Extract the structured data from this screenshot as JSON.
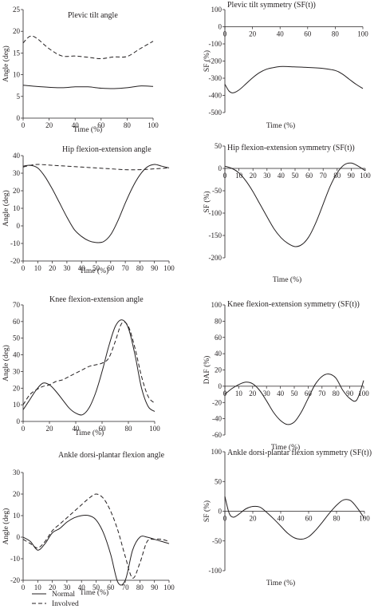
{
  "legend": {
    "normal": "Normal",
    "involved": "Involved"
  },
  "chart_data": [
    {
      "id": "pelvic-tilt-angle",
      "type": "line",
      "title": "Plevic tilt angle",
      "xlabel": "Time (%)",
      "ylabel": "Angle (deg)",
      "xlim": [
        0,
        100
      ],
      "ylim": [
        0,
        25
      ],
      "xticks": [
        0,
        20,
        40,
        60,
        80,
        100
      ],
      "yticks": [
        0,
        5,
        10,
        15,
        20,
        25
      ],
      "grid": false,
      "series": [
        {
          "name": "Normal",
          "style": "solid",
          "x": [
            0,
            10,
            20,
            30,
            40,
            50,
            60,
            70,
            80,
            90,
            100
          ],
          "y": [
            7.6,
            7.3,
            7.1,
            7.0,
            7.2,
            7.2,
            6.9,
            6.8,
            7.0,
            7.4,
            7.3
          ]
        },
        {
          "name": "Involved",
          "style": "dashed",
          "x": [
            0,
            5,
            10,
            20,
            30,
            40,
            50,
            60,
            70,
            80,
            90,
            100
          ],
          "y": [
            17.3,
            18.8,
            18.5,
            16.0,
            14.3,
            14.3,
            14.0,
            13.7,
            14.1,
            14.2,
            16.0,
            17.7
          ]
        }
      ]
    },
    {
      "id": "pelvic-tilt-symmetry",
      "type": "line",
      "title": "Plevic tilt symmetry (SF(t))",
      "xlabel": "Time (%)",
      "ylabel": "SF (%)",
      "xlim": [
        0,
        100
      ],
      "ylim": [
        -500,
        100
      ],
      "xticks": [
        0,
        20,
        40,
        60,
        80,
        100
      ],
      "yticks": [
        100,
        0,
        -100,
        -200,
        -300,
        -400,
        -500
      ],
      "grid": false,
      "series": [
        {
          "name": "Normal",
          "style": "solid",
          "x": [
            0,
            3,
            6,
            10,
            15,
            20,
            25,
            30,
            35,
            40,
            45,
            50,
            60,
            70,
            80,
            85,
            90,
            95,
            100
          ],
          "y": [
            -335,
            -375,
            -385,
            -370,
            -335,
            -298,
            -268,
            -248,
            -238,
            -232,
            -232,
            -234,
            -237,
            -242,
            -255,
            -275,
            -305,
            -335,
            -360
          ]
        }
      ]
    },
    {
      "id": "hip-flexion-extension-angle",
      "type": "line",
      "title": "Hip flexion-extension angle",
      "xlabel": "Time (%)",
      "ylabel": "Angle (deg)",
      "xlim": [
        0,
        100
      ],
      "ylim": [
        -20,
        40
      ],
      "xticks": [
        0,
        10,
        20,
        30,
        40,
        50,
        60,
        70,
        80,
        90,
        100
      ],
      "yticks": [
        40,
        30,
        20,
        10,
        0,
        -10,
        -20
      ],
      "grid": false,
      "series": [
        {
          "name": "Normal",
          "style": "solid",
          "x": [
            0,
            5,
            10,
            15,
            20,
            25,
            30,
            35,
            40,
            45,
            50,
            55,
            60,
            65,
            70,
            75,
            80,
            85,
            90,
            95,
            100
          ],
          "y": [
            34,
            34.5,
            33,
            28,
            21,
            13,
            5,
            -2,
            -6,
            -8.5,
            -9.5,
            -9,
            -5,
            3,
            13,
            22,
            29,
            33.5,
            35,
            34,
            33
          ]
        },
        {
          "name": "Involved",
          "style": "dashed",
          "x": [
            0,
            5,
            10,
            20,
            30,
            40,
            50,
            60,
            70,
            80,
            90,
            100
          ],
          "y": [
            33.5,
            34.5,
            35,
            34.5,
            34,
            33.5,
            33,
            32.5,
            32,
            32,
            32.5,
            33
          ]
        }
      ]
    },
    {
      "id": "hip-flexion-extension-symmetry",
      "type": "line",
      "title": "Hip flexion-extension symmetry (SF(t))",
      "xlabel": "Time (%)",
      "ylabel": "SF (%)",
      "xlim": [
        0,
        100
      ],
      "ylim": [
        -200,
        50
      ],
      "xticks": [
        0,
        10,
        20,
        30,
        40,
        50,
        60,
        70,
        80,
        90,
        100
      ],
      "yticks": [
        50,
        0,
        -50,
        -100,
        -150,
        -200
      ],
      "grid": false,
      "series": [
        {
          "name": "Normal",
          "style": "solid",
          "x": [
            0,
            5,
            10,
            15,
            20,
            25,
            30,
            35,
            40,
            45,
            50,
            55,
            60,
            65,
            70,
            75,
            80,
            85,
            90,
            95,
            100
          ],
          "y": [
            5,
            0,
            -10,
            -28,
            -52,
            -80,
            -108,
            -135,
            -155,
            -168,
            -175,
            -170,
            -152,
            -120,
            -80,
            -40,
            -10,
            8,
            12,
            5,
            -5
          ]
        }
      ]
    },
    {
      "id": "knee-flexion-extension-angle",
      "type": "line",
      "title": "Knee flexion-extension angle",
      "xlabel": "Time (%)",
      "ylabel": "Angle (deg)",
      "xlim": [
        0,
        100
      ],
      "ylim": [
        0,
        70
      ],
      "xticks": [
        0,
        20,
        40,
        60,
        80,
        100
      ],
      "yticks": [
        0,
        10,
        20,
        30,
        40,
        50,
        60,
        70
      ],
      "grid": false,
      "series": [
        {
          "name": "Normal",
          "style": "solid",
          "x": [
            0,
            5,
            10,
            15,
            20,
            25,
            30,
            35,
            40,
            45,
            50,
            55,
            60,
            65,
            70,
            75,
            80,
            85,
            90,
            95,
            100
          ],
          "y": [
            7,
            13,
            19,
            23,
            22,
            18,
            13,
            8,
            5,
            4,
            8,
            17,
            30,
            45,
            57,
            61,
            56,
            40,
            20,
            9,
            6
          ]
        },
        {
          "name": "Involved",
          "style": "dashed",
          "x": [
            0,
            5,
            10,
            15,
            20,
            25,
            30,
            35,
            40,
            45,
            50,
            55,
            60,
            65,
            70,
            75,
            80,
            85,
            90,
            95,
            100
          ],
          "y": [
            10,
            16,
            19,
            21,
            22,
            24,
            25,
            27,
            29,
            31,
            33,
            34,
            35,
            38,
            48,
            59,
            57,
            44,
            27,
            15,
            11
          ]
        }
      ]
    },
    {
      "id": "knee-flexion-extension-symmetry",
      "type": "line",
      "title": "Knee flexion-extension symmetry (SF(t))",
      "xlabel": "Time (%)",
      "ylabel": "DAF (%)",
      "xlim": [
        0,
        100
      ],
      "ylim": [
        -60,
        100
      ],
      "xticks": [
        0,
        10,
        20,
        30,
        40,
        50,
        60,
        70,
        80,
        90,
        100
      ],
      "yticks": [
        100,
        80,
        60,
        40,
        20,
        0,
        -20,
        -40,
        -60
      ],
      "grid": false,
      "series": [
        {
          "name": "Normal",
          "style": "solid",
          "x": [
            0,
            5,
            10,
            15,
            20,
            25,
            30,
            35,
            40,
            45,
            50,
            55,
            60,
            65,
            70,
            75,
            80,
            85,
            90,
            95,
            100
          ],
          "y": [
            -10,
            -3,
            2,
            5,
            3,
            -5,
            -18,
            -32,
            -42,
            -47,
            -44,
            -32,
            -15,
            2,
            12,
            15,
            10,
            -5,
            -15,
            -17,
            7
          ]
        }
      ]
    },
    {
      "id": "ankle-dorsi-plantar-flexion-angle",
      "type": "line",
      "title": "Ankle dorsi-plantar flexion angle",
      "xlabel": "Time (%)",
      "ylabel": "Angle (deg)",
      "xlim": [
        0,
        100
      ],
      "ylim": [
        -20,
        30
      ],
      "xticks": [
        0,
        10,
        20,
        30,
        40,
        50,
        60,
        70,
        80,
        90,
        100
      ],
      "yticks": [
        30,
        20,
        10,
        0,
        -10,
        -20
      ],
      "grid": false,
      "series": [
        {
          "name": "Normal",
          "style": "solid",
          "x": [
            0,
            5,
            10,
            15,
            20,
            25,
            30,
            35,
            40,
            45,
            50,
            55,
            60,
            65,
            70,
            75,
            80,
            85,
            90,
            95,
            100
          ],
          "y": [
            0,
            -2,
            -6,
            -3,
            2,
            4,
            7,
            9,
            10,
            10,
            8,
            2,
            -8,
            -21,
            -20,
            -6,
            0,
            0,
            -1,
            -2,
            -3
          ]
        },
        {
          "name": "Involved",
          "style": "dashed",
          "x": [
            0,
            5,
            10,
            15,
            20,
            25,
            30,
            35,
            40,
            45,
            50,
            55,
            60,
            65,
            70,
            75,
            80,
            85,
            90,
            95,
            100
          ],
          "y": [
            -1,
            -3,
            -5,
            -2,
            3,
            6,
            9,
            12,
            15,
            18,
            20,
            18,
            12,
            3,
            -9,
            -19,
            -12,
            -2,
            -1,
            -1,
            -2
          ]
        }
      ]
    },
    {
      "id": "ankle-dorsi-plantar-flexion-symmetry",
      "type": "line",
      "title": "Ankle dorsi-plantar flexion symmetry (SF(t))",
      "xlabel": "Time (%)",
      "ylabel": "SF (%)",
      "xlim": [
        0,
        100
      ],
      "ylim": [
        -100,
        100
      ],
      "xticks": [
        0,
        20,
        40,
        60,
        80,
        100
      ],
      "yticks": [
        100,
        50,
        0,
        -50,
        -100
      ],
      "grid": false,
      "series": [
        {
          "name": "Normal",
          "style": "solid",
          "x": [
            0,
            3,
            6,
            10,
            15,
            20,
            25,
            30,
            35,
            40,
            45,
            50,
            55,
            60,
            65,
            70,
            75,
            80,
            85,
            90,
            95,
            100
          ],
          "y": [
            25,
            -3,
            -10,
            -5,
            4,
            8,
            7,
            -2,
            -13,
            -25,
            -37,
            -45,
            -47,
            -43,
            -32,
            -18,
            -3,
            10,
            19,
            18,
            5,
            -12
          ]
        }
      ]
    }
  ]
}
